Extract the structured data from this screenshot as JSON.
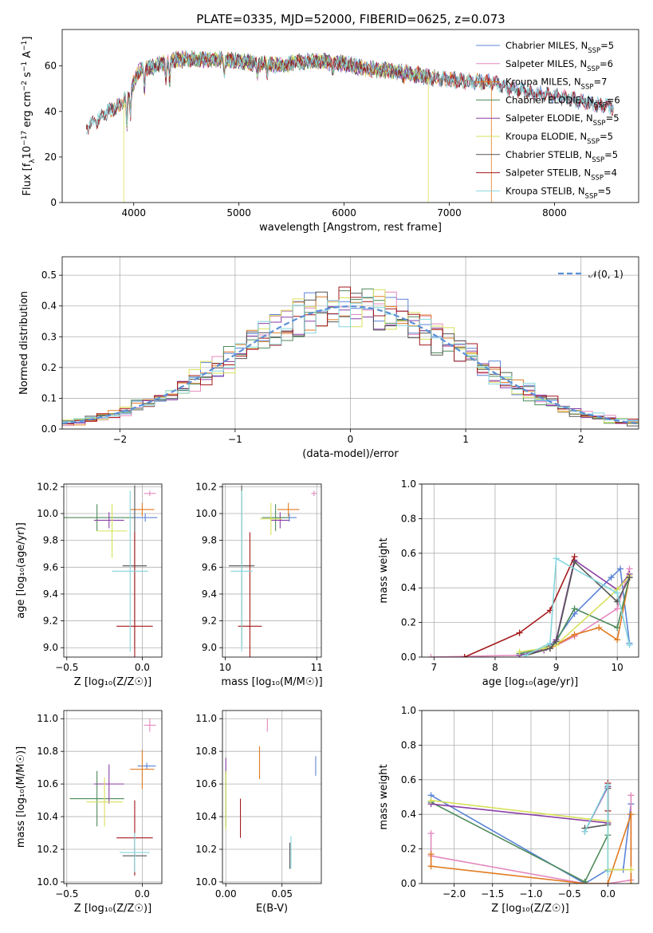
{
  "figure_title": "PLATE=0335, MJD=52000, FIBERID=0625, z=0.073",
  "colors": {
    "Chabrier MILES": "#5b84d6",
    "Salpeter MILES": "#e389bd",
    "Kroupa MILES": "#e07b22",
    "Chabrier ELODIE": "#4d8a5a",
    "Salpeter ELODIE": "#8a3fa6",
    "Kroupa ELODIE": "#d7e15a",
    "Chabrier STELIB": "#555555",
    "Salpeter STELIB": "#a5191c",
    "Kroupa STELIB": "#86d6dc",
    "normal_curve": "#5b8fd6"
  },
  "chart_data": [
    {
      "id": "spectrum",
      "type": "line",
      "title": "",
      "xlabel": "wavelength [Angstrom, rest frame]",
      "ylabel": "Flux [f",
      "ylabel_parts": [
        "Flux [f",
        "λ",
        "10",
        "−17",
        " erg cm",
        "−2",
        " s",
        "−1",
        " A",
        "−1",
        "]"
      ],
      "xlim": [
        3320,
        8800
      ],
      "ylim": [
        0,
        76
      ],
      "xticks": [
        4000,
        5000,
        6000,
        7000,
        8000
      ],
      "yticks": [
        0,
        20,
        40,
        60
      ],
      "grid": false,
      "legend_position": "top-right",
      "continuum": {
        "x": [
          3550,
          3650,
          3750,
          3850,
          3950,
          4050,
          4200,
          4400,
          4600,
          4800,
          5000,
          5200,
          5400,
          5600,
          5800,
          6000,
          6200,
          6400,
          6600,
          6800,
          7000,
          7200,
          7400,
          7600,
          7800,
          8000,
          8200,
          8400,
          8560
        ],
        "y": [
          33,
          36,
          40,
          42,
          47,
          58,
          60,
          63,
          63,
          63,
          62,
          61,
          60,
          62,
          62,
          61,
          59,
          58,
          57,
          55,
          54,
          53,
          53,
          50,
          48,
          47,
          45,
          43,
          42
        ]
      },
      "series": [
        {
          "name": "Chabrier MILES, N",
          "sub": "SSP",
          "n": "=5",
          "x_range": [
            3750,
            8560
          ]
        },
        {
          "name": "Salpeter MILES, N",
          "sub": "SSP",
          "n": "=6",
          "x_range": [
            3750,
            8560
          ]
        },
        {
          "name": "Kroupa MILES, N",
          "sub": "SSP",
          "n": "=7",
          "x_range": [
            3750,
            7400
          ]
        },
        {
          "name": "Chabrier ELODIE, N",
          "sub": "SSP",
          "n": "=6",
          "x_range": [
            3900,
            6800
          ]
        },
        {
          "name": "Salpeter ELODIE, N",
          "sub": "SSP",
          "n": "=5",
          "x_range": [
            3900,
            6800
          ]
        },
        {
          "name": "Kroupa ELODIE, N",
          "sub": "SSP",
          "n": "=5",
          "x_range": [
            3900,
            6800
          ]
        },
        {
          "name": "Chabrier STELIB, N",
          "sub": "SSP",
          "n": "=5",
          "x_range": [
            3550,
            8560
          ]
        },
        {
          "name": "Salpeter STELIB, N",
          "sub": "SSP",
          "n": "=4",
          "x_range": [
            3550,
            8560
          ]
        },
        {
          "name": "Kroupa STELIB, N",
          "sub": "SSP",
          "n": "=5",
          "x_range": [
            3550,
            8560
          ]
        }
      ]
    },
    {
      "id": "residuals",
      "type": "histogram",
      "title": "",
      "xlabel": "(data-model)/error",
      "ylabel": "Normed distribution",
      "xlim": [
        -2.5,
        2.5
      ],
      "ylim": [
        0,
        0.56
      ],
      "xticks": [
        -2,
        -1,
        0,
        1,
        2
      ],
      "yticks": [
        0.0,
        0.1,
        0.2,
        0.3,
        0.4,
        0.5
      ],
      "grid": true,
      "legend_position": "top-right",
      "legend": [
        "𝒩(0, 1)"
      ],
      "bins": 50,
      "approx_density": "N(0,1) with bin-to-bin noise of about ±0.06"
    },
    {
      "id": "age_vs_Z",
      "type": "errorbar",
      "xlabel": "Z [log₁₀(Z/Z☉)]",
      "ylabel": "age  [log₁₀(age/yr)]",
      "xlim": [
        -0.52,
        0.13
      ],
      "ylim": [
        8.93,
        10.22
      ],
      "xticks": [
        -0.5,
        0.0
      ],
      "yticks": [
        9.0,
        9.2,
        9.4,
        9.6,
        9.8,
        10.0,
        10.2
      ],
      "grid": true,
      "points": [
        {
          "s": "Chabrier MILES",
          "x": 0.02,
          "xe": 0.08,
          "y": 9.97,
          "ye": 0.03
        },
        {
          "s": "Salpeter MILES",
          "x": 0.05,
          "xe": 0.04,
          "y": 10.15,
          "ye": 0.02
        },
        {
          "s": "Kroupa MILES",
          "x": 0.0,
          "xe": 0.08,
          "y": 10.03,
          "ye": 0.05
        },
        {
          "s": "Chabrier ELODIE",
          "x": -0.3,
          "xe": 0.24,
          "y": 9.97,
          "ye": 0.1
        },
        {
          "s": "Salpeter ELODIE",
          "x": -0.22,
          "xe": 0.1,
          "y": 9.95,
          "ye": 0.06
        },
        {
          "s": "Kroupa ELODIE",
          "x": -0.2,
          "xe": 0.1,
          "y": 9.87,
          "ye": 0.2
        },
        {
          "s": "Chabrier STELIB",
          "x": -0.05,
          "xe": 0.08,
          "y": 9.61,
          "ye": 0.6
        },
        {
          "s": "Salpeter STELIB",
          "x": -0.05,
          "xe": 0.12,
          "y": 9.16,
          "ye": 0.7
        },
        {
          "s": "Kroupa STELIB",
          "x": -0.08,
          "xe": 0.12,
          "y": 9.57,
          "ye": 0.6
        }
      ]
    },
    {
      "id": "age_vs_mass",
      "type": "errorbar",
      "xlabel": "mass [log₁₀(M/M☉)]",
      "ylabel": "",
      "xlim": [
        9.97,
        11.05
      ],
      "ylim": [
        8.93,
        10.22
      ],
      "xticks": [
        10,
        11
      ],
      "yticks": [
        9.0,
        9.2,
        9.4,
        9.6,
        9.8,
        10.0,
        10.2
      ],
      "grid": true,
      "points": [
        {
          "s": "Chabrier MILES",
          "x": 10.7,
          "xe": 0.08,
          "y": 9.97,
          "ye": 0.03
        },
        {
          "s": "Salpeter MILES",
          "x": 10.97,
          "xe": 0.03,
          "y": 10.15,
          "ye": 0.02
        },
        {
          "s": "Kroupa MILES",
          "x": 10.69,
          "xe": 0.12,
          "y": 10.03,
          "ye": 0.05
        },
        {
          "s": "Chabrier ELODIE",
          "x": 10.55,
          "xe": 0.15,
          "y": 9.97,
          "ye": 0.1
        },
        {
          "s": "Salpeter ELODIE",
          "x": 10.6,
          "xe": 0.1,
          "y": 9.95,
          "ye": 0.06
        },
        {
          "s": "Kroupa ELODIE",
          "x": 10.5,
          "xe": 0.12,
          "y": 9.96,
          "ye": 0.12
        },
        {
          "s": "Chabrier STELIB",
          "x": 10.18,
          "xe": 0.14,
          "y": 9.61,
          "ye": 0.6
        },
        {
          "s": "Salpeter STELIB",
          "x": 10.27,
          "xe": 0.13,
          "y": 9.16,
          "ye": 0.7
        },
        {
          "s": "Kroupa STELIB",
          "x": 10.18,
          "xe": 0.12,
          "y": 9.57,
          "ye": 0.6
        }
      ]
    },
    {
      "id": "weight_vs_age",
      "type": "line",
      "xlabel": "age  [log₁₀(age/yr)]",
      "ylabel": "mass weight",
      "xlim": [
        6.8,
        10.35
      ],
      "ylim": [
        0,
        1.0
      ],
      "xticks": [
        7,
        8,
        9,
        10
      ],
      "yticks": [
        0.0,
        0.2,
        0.4,
        0.6,
        0.8,
        1.0
      ],
      "grid": true,
      "series": [
        {
          "name": "Chabrier MILES",
          "x": [
            8.5,
            8.9,
            9.3,
            9.9,
            10.05,
            10.2
          ],
          "y": [
            0.01,
            0.05,
            0.25,
            0.46,
            0.51,
            0.08
          ]
        },
        {
          "name": "Salpeter MILES",
          "x": [
            6.95,
            8.4,
            8.9,
            9.3,
            10.0,
            10.2
          ],
          "y": [
            0.0,
            0.01,
            0.05,
            0.12,
            0.28,
            0.51
          ]
        },
        {
          "name": "Kroupa MILES",
          "x": [
            8.5,
            8.9,
            9.3,
            9.7,
            10.0,
            10.2
          ],
          "y": [
            0.01,
            0.05,
            0.13,
            0.17,
            0.1,
            0.46
          ]
        },
        {
          "name": "Chabrier ELODIE",
          "x": [
            8.4,
            8.8,
            9.0,
            9.3,
            10.0,
            10.2
          ],
          "y": [
            0.02,
            0.05,
            0.09,
            0.28,
            0.17,
            0.46
          ]
        },
        {
          "name": "Salpeter ELODIE",
          "x": [
            8.4,
            8.8,
            9.0,
            9.3,
            10.0,
            10.2
          ],
          "y": [
            0.01,
            0.04,
            0.1,
            0.56,
            0.39,
            0.48
          ]
        },
        {
          "name": "Kroupa ELODIE",
          "x": [
            8.4,
            8.8,
            9.0,
            10.0,
            10.2
          ],
          "y": [
            0.03,
            0.05,
            0.07,
            0.39,
            0.47
          ]
        },
        {
          "name": "Chabrier STELIB",
          "x": [
            8.5,
            8.9,
            9.0,
            9.3,
            10.0,
            10.2
          ],
          "y": [
            0.01,
            0.05,
            0.09,
            0.55,
            0.32,
            0.46
          ]
        },
        {
          "name": "Salpeter STELIB",
          "x": [
            7.5,
            8.4,
            8.9,
            9.3
          ],
          "y": [
            0.0,
            0.14,
            0.27,
            0.58
          ]
        },
        {
          "name": "Kroupa STELIB",
          "x": [
            8.5,
            8.9,
            9.0,
            10.0,
            10.2
          ],
          "y": [
            0.01,
            0.08,
            0.57,
            0.37,
            0.07
          ]
        }
      ]
    },
    {
      "id": "mass_vs_Z",
      "type": "errorbar",
      "xlabel": "Z [log₁₀(Z/Z☉)]",
      "ylabel": "mass [log₁₀(M/M☉)]",
      "xlim": [
        -0.52,
        0.13
      ],
      "ylim": [
        9.99,
        11.05
      ],
      "xticks": [
        -0.5,
        0.0
      ],
      "yticks": [
        10.0,
        10.2,
        10.4,
        10.6,
        10.8,
        11.0
      ],
      "grid": true,
      "points": [
        {
          "s": "Chabrier MILES",
          "x": 0.03,
          "xe": 0.06,
          "y": 10.71,
          "ye": 0.02
        },
        {
          "s": "Salpeter MILES",
          "x": 0.05,
          "xe": 0.04,
          "y": 10.96,
          "ye": 0.04
        },
        {
          "s": "Kroupa MILES",
          "x": 0.0,
          "xe": 0.08,
          "y": 10.69,
          "ye": 0.12
        },
        {
          "s": "Chabrier ELODIE",
          "x": -0.3,
          "xe": 0.18,
          "y": 10.51,
          "ye": 0.17
        },
        {
          "s": "Salpeter ELODIE",
          "x": -0.22,
          "xe": 0.1,
          "y": 10.6,
          "ye": 0.12
        },
        {
          "s": "Kroupa ELODIE",
          "x": -0.25,
          "xe": 0.12,
          "y": 10.49,
          "ye": 0.15
        },
        {
          "s": "Chabrier STELIB",
          "x": -0.05,
          "xe": 0.08,
          "y": 10.16,
          "ye": 0.12
        },
        {
          "s": "Salpeter STELIB",
          "x": -0.05,
          "xe": 0.12,
          "y": 10.27,
          "ye": 0.23
        },
        {
          "s": "Kroupa STELIB",
          "x": -0.05,
          "xe": 0.1,
          "y": 10.18,
          "ye": 0.12
        }
      ]
    },
    {
      "id": "mass_vs_EBV",
      "type": "errorbar",
      "xlabel": "E(B-V)",
      "ylabel": "",
      "xlim": [
        -0.003,
        0.085
      ],
      "ylim": [
        9.99,
        11.05
      ],
      "xticks": [
        0.0,
        0.05
      ],
      "yticks": [
        10.0,
        10.2,
        10.4,
        10.6,
        10.8,
        11.0
      ],
      "grid": true,
      "points": [
        {
          "s": "Chabrier MILES",
          "x": 0.08,
          "xe": 0.0,
          "y": 10.71,
          "ye": 0.06
        },
        {
          "s": "Salpeter MILES",
          "x": 0.037,
          "xe": 0.0,
          "y": 10.96,
          "ye": 0.04
        },
        {
          "s": "Kroupa MILES",
          "x": 0.03,
          "xe": 0.0,
          "y": 10.73,
          "ye": 0.1
        },
        {
          "s": "Chabrier ELODIE",
          "x": 0.0,
          "xe": 0.0,
          "y": 10.51,
          "ye": 0.17
        },
        {
          "s": "Salpeter ELODIE",
          "x": 0.0,
          "xe": 0.0,
          "y": 10.71,
          "ye": 0.05
        },
        {
          "s": "Kroupa ELODIE",
          "x": 0.0,
          "xe": 0.0,
          "y": 10.5,
          "ye": 0.18
        },
        {
          "s": "Chabrier STELIB",
          "x": 0.057,
          "xe": 0.0,
          "y": 10.16,
          "ye": 0.08
        },
        {
          "s": "Salpeter STELIB",
          "x": 0.013,
          "xe": 0.0,
          "y": 10.39,
          "ye": 0.12
        },
        {
          "s": "Kroupa STELIB",
          "x": 0.058,
          "xe": 0.0,
          "y": 10.18,
          "ye": 0.1
        }
      ]
    },
    {
      "id": "weight_vs_Z",
      "type": "line",
      "xlabel": "Z [log₁₀(Z/Z☉)]",
      "ylabel": "mass weight",
      "xlim": [
        -2.42,
        0.4
      ],
      "ylim": [
        0,
        1.0
      ],
      "xticks": [
        -2.0,
        -1.5,
        -1.0,
        -0.5,
        0.0
      ],
      "yticks": [
        0.0,
        0.2,
        0.4,
        0.6,
        0.8,
        1.0
      ],
      "grid": true,
      "series": [
        {
          "name": "Chabrier MILES",
          "x": [
            -2.3,
            -0.3,
            0.0,
            0.2,
            0.3
          ],
          "y": [
            0.51,
            0.0,
            0.08,
            0.08,
            0.46
          ]
        },
        {
          "name": "Salpeter MILES",
          "x": [
            -2.3,
            -2.3,
            -0.3,
            0.0,
            0.3,
            0.3
          ],
          "y": [
            0.29,
            0.16,
            0.0,
            0.0,
            0.02,
            0.51
          ]
        },
        {
          "name": "Kroupa MILES",
          "x": [
            -2.3,
            -2.3,
            -0.3,
            0.0,
            0.3,
            0.3
          ],
          "y": [
            0.17,
            0.1,
            0.0,
            0.0,
            0.4,
            0.0
          ]
        },
        {
          "name": "Chabrier ELODIE",
          "x": [
            -2.3,
            -0.3,
            0.0,
            0.0
          ],
          "y": [
            0.47,
            0.01,
            0.28,
            0.56
          ]
        },
        {
          "name": "Salpeter ELODIE",
          "x": [
            -2.3,
            0.0,
            0.0,
            -0.3
          ],
          "y": [
            0.46,
            0.35,
            0.56,
            0.3
          ]
        },
        {
          "name": "Kroupa ELODIE",
          "x": [
            -2.3,
            0.0,
            0.0,
            0.3
          ],
          "y": [
            0.48,
            0.36,
            0.08,
            0.08
          ]
        },
        {
          "name": "Chabrier STELIB",
          "x": [
            -0.3,
            0.0,
            0.0
          ],
          "y": [
            0.32,
            0.34,
            0.55
          ]
        },
        {
          "name": "Salpeter STELIB",
          "x": [
            0.0,
            0.0
          ],
          "y": [
            0.42,
            0.58
          ]
        },
        {
          "name": "Kroupa STELIB",
          "x": [
            -0.3,
            0.0,
            0.0
          ],
          "y": [
            0.3,
            0.57,
            0.07
          ]
        }
      ]
    }
  ]
}
